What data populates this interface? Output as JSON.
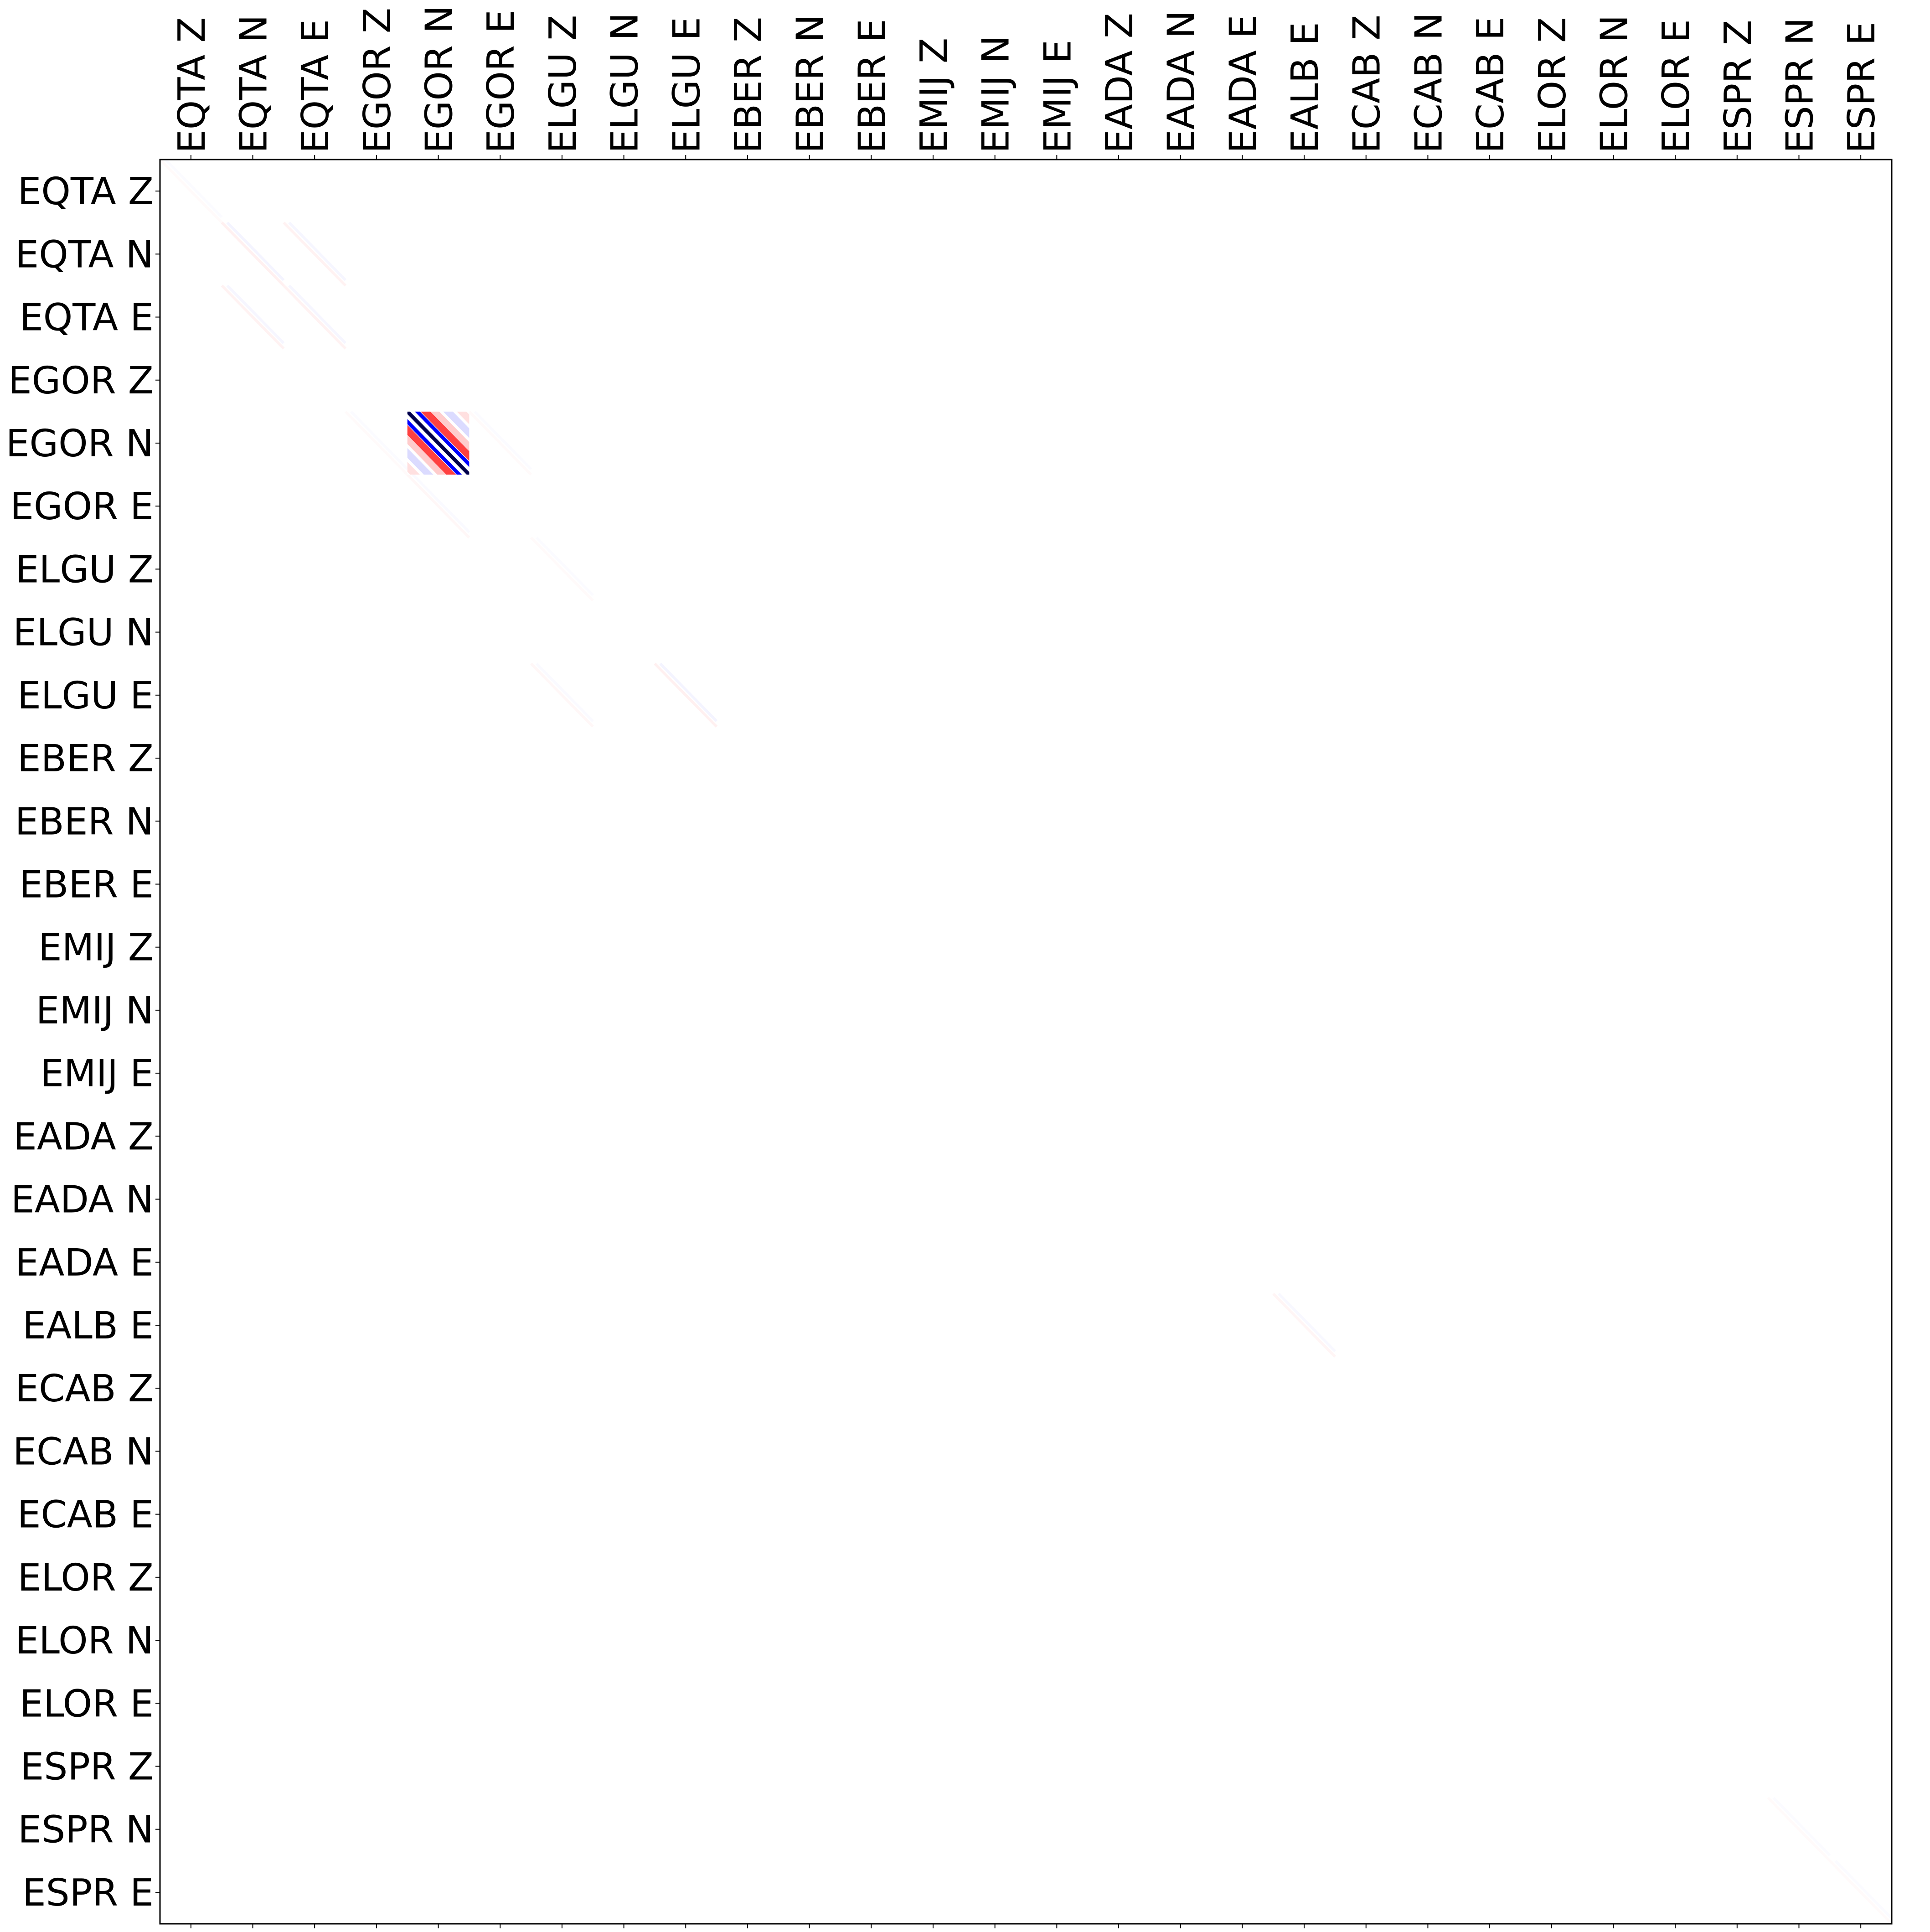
{
  "chart_data": {
    "type": "heatmap",
    "title": "",
    "xlabel": "",
    "ylabel": "",
    "x_tick_labels": [
      "EQTA Z",
      "EQTA N",
      "EQTA E",
      "EGOR Z",
      "EGOR N",
      "EGOR E",
      "ELGU Z",
      "ELGU N",
      "ELGU E",
      "EBER Z",
      "EBER N",
      "EBER E",
      "EMIJ Z",
      "EMIJ N",
      "EMIJ E",
      "EADA Z",
      "EADA N",
      "EADA E",
      "EALB E",
      "ECAB Z",
      "ECAB N",
      "ECAB E",
      "ELOR Z",
      "ELOR N",
      "ELOR E",
      "ESPR Z",
      "ESPR N",
      "ESPR E"
    ],
    "y_tick_labels": [
      "EQTA Z",
      "EQTA N",
      "EQTA E",
      "EGOR Z",
      "EGOR N",
      "EGOR E",
      "ELGU Z",
      "ELGU N",
      "ELGU E",
      "EBER Z",
      "EBER N",
      "EBER E",
      "EMIJ Z",
      "EMIJ N",
      "EMIJ E",
      "EADA Z",
      "EADA N",
      "EADA E",
      "EALB E",
      "ECAB Z",
      "ECAB N",
      "ECAB E",
      "ELOR Z",
      "ELOR N",
      "ELOR E",
      "ESPR Z",
      "ESPR N",
      "ESPR E"
    ],
    "colormap": "seismic",
    "colors": {
      "negative": "#0000ff",
      "zero": "#ffffff",
      "positive": "#ff0000",
      "dark_negative": "#00004c"
    },
    "dominant_block": {
      "row": "EGOR N",
      "col": "EGOR N"
    },
    "weak_diagonal_blocks": [
      {
        "row": "EQTA Z",
        "col": "EQTA Z",
        "level": 0.02
      },
      {
        "row": "EQTA N",
        "col": "EQTA N",
        "level": 0.06
      },
      {
        "row": "EQTA E",
        "col": "EQTA E",
        "level": 0.05
      },
      {
        "row": "EQTA N",
        "col": "EQTA E",
        "level": 0.05
      },
      {
        "row": "EQTA E",
        "col": "EQTA N",
        "level": 0.05
      },
      {
        "row": "EGOR N",
        "col": "EGOR Z",
        "level": 0.02
      },
      {
        "row": "EGOR N",
        "col": "EGOR E",
        "level": 0.02
      },
      {
        "row": "EGOR E",
        "col": "EGOR N",
        "level": 0.03
      },
      {
        "row": "ELGU Z",
        "col": "ELGU Z",
        "level": 0.02
      },
      {
        "row": "ELGU E",
        "col": "ELGU E",
        "level": 0.06
      },
      {
        "row": "ELGU E",
        "col": "ELGU Z",
        "level": 0.03
      },
      {
        "row": "EALB E",
        "col": "EALB E",
        "level": 0.04
      },
      {
        "row": "ESPR N",
        "col": "ESPR N",
        "level": 0.02
      },
      {
        "row": "ESPR E",
        "col": "ESPR E",
        "level": 0.02
      }
    ],
    "grid": false
  }
}
